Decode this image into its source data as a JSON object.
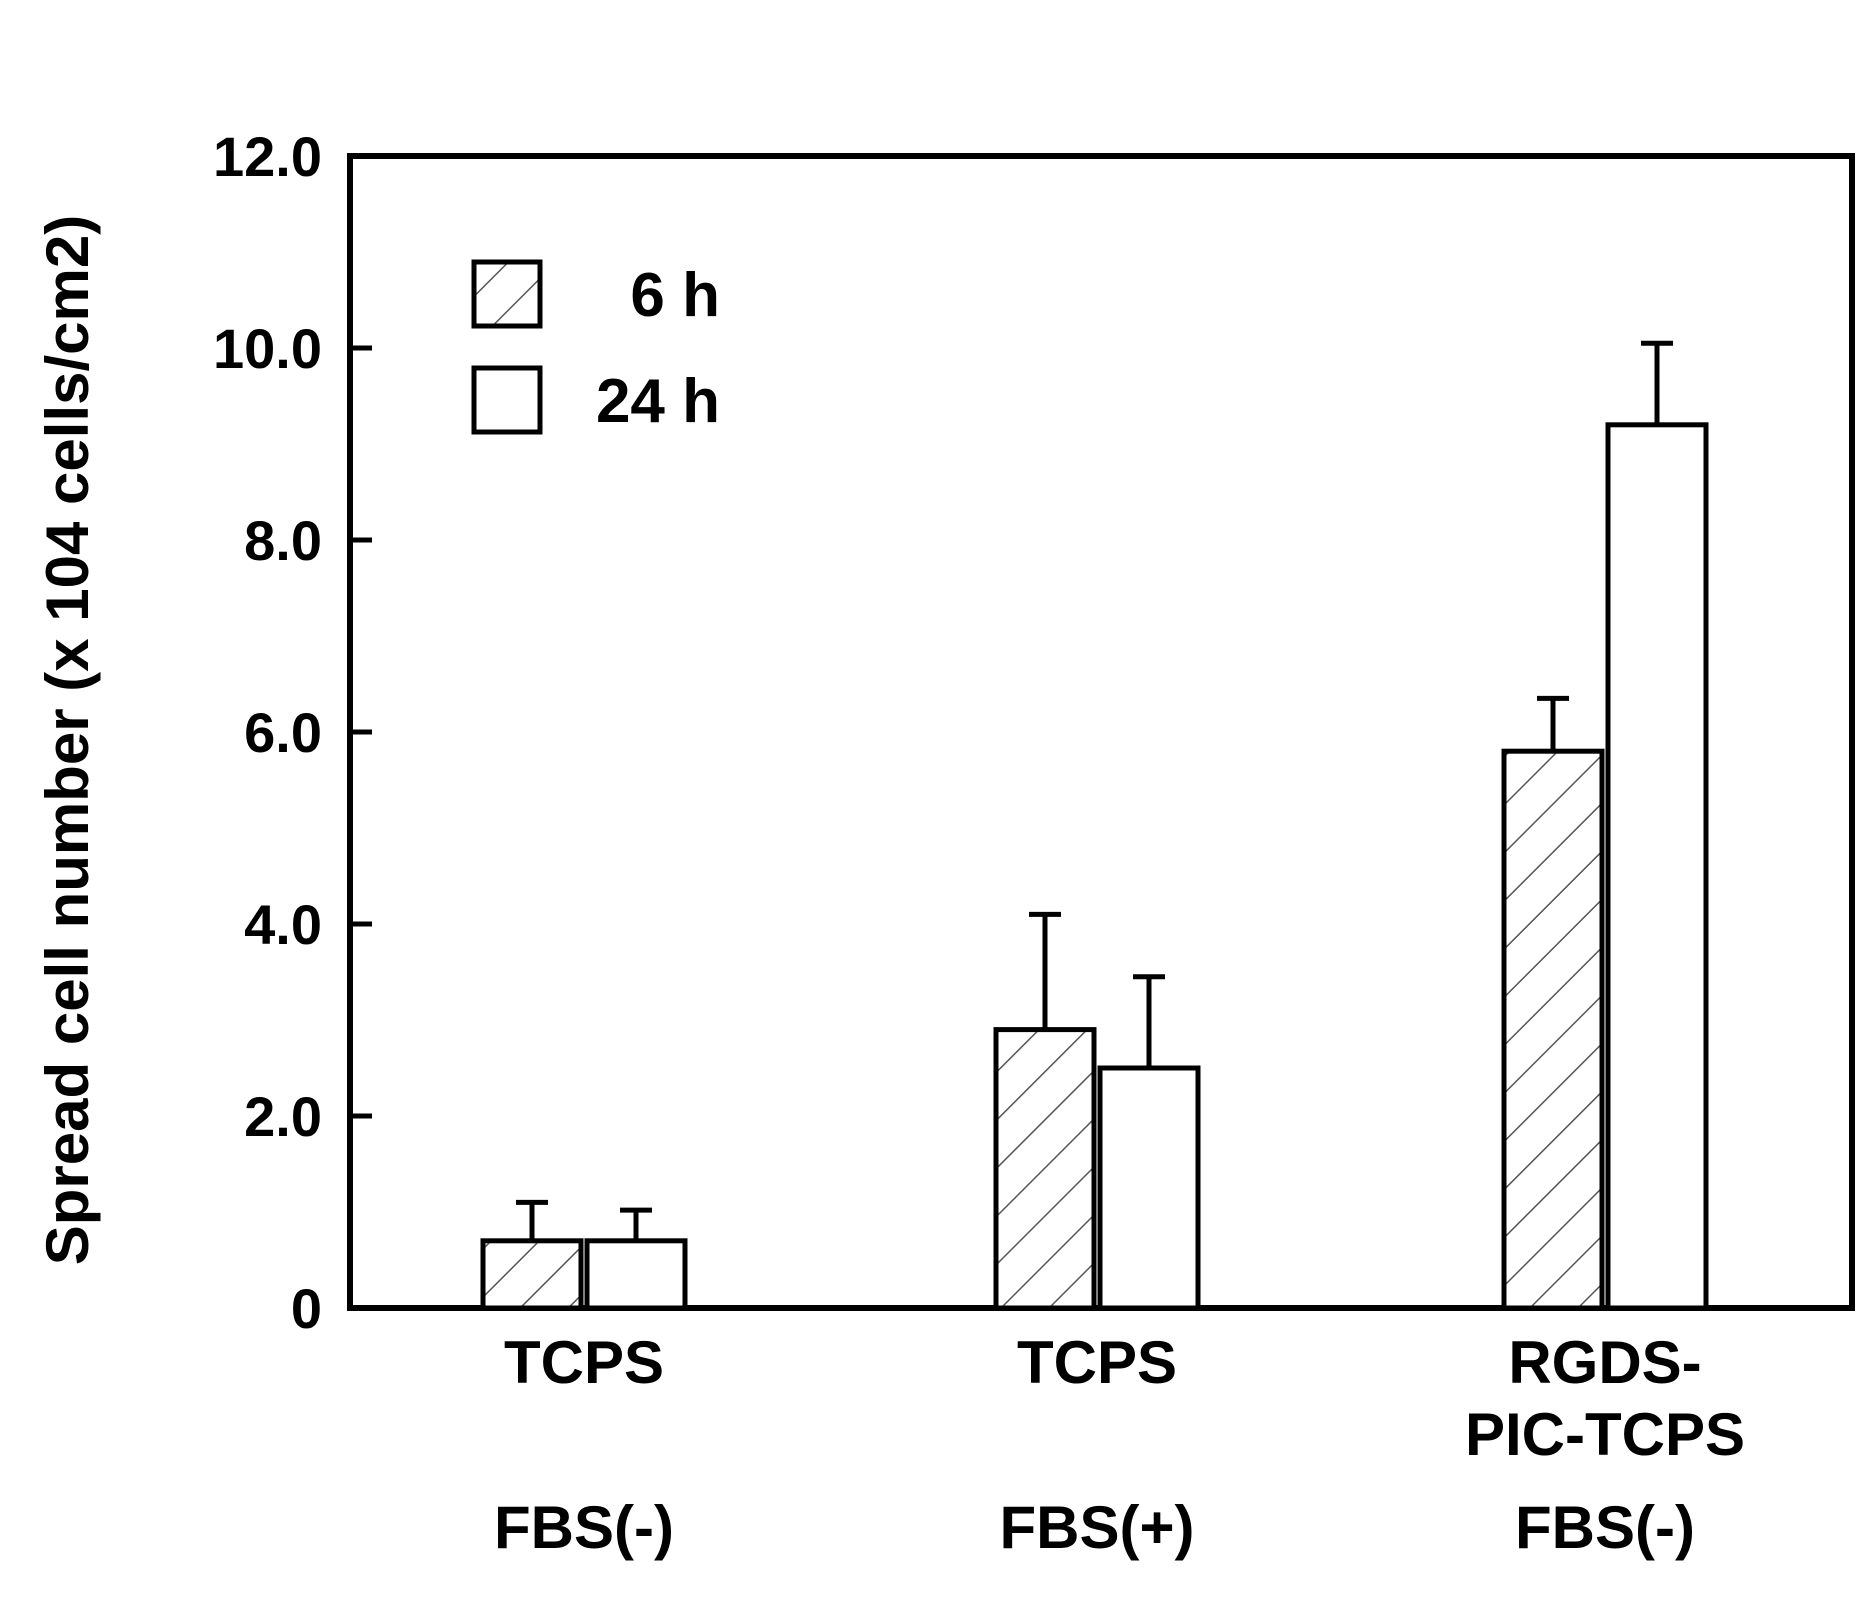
{
  "chart_data": {
    "type": "bar",
    "title": "",
    "ylabel": "Spread cell number (x 104 cells/cm2)",
    "xlabel": "",
    "ylim": [
      0,
      12
    ],
    "yticks": [
      0,
      2,
      4,
      6,
      8,
      10,
      12
    ],
    "ytick_labels": [
      "0",
      "2.0",
      "4.0",
      "6.0",
      "8.0",
      "10.0",
      "12.0"
    ],
    "grid": false,
    "legend_position": "top-left",
    "categories": [
      {
        "line1": "TCPS",
        "line2": "",
        "line3": "FBS(-)"
      },
      {
        "line1": "TCPS",
        "line2": "",
        "line3": "FBS(+)"
      },
      {
        "line1": "RGDS-",
        "line2": "PIC-TCPS",
        "line3": "FBS(-)"
      }
    ],
    "series": [
      {
        "name": "6 h",
        "pattern": "hatched",
        "values": [
          0.7,
          2.9,
          5.8
        ],
        "errors": [
          0.4,
          1.2,
          0.55
        ]
      },
      {
        "name": "24 h",
        "pattern": "open",
        "values": [
          0.7,
          2.5,
          9.2
        ],
        "errors": [
          0.32,
          0.95,
          0.85
        ]
      }
    ],
    "colors": {
      "stroke": "#000000",
      "fill": "#ffffff",
      "hatch": "#555555"
    }
  }
}
